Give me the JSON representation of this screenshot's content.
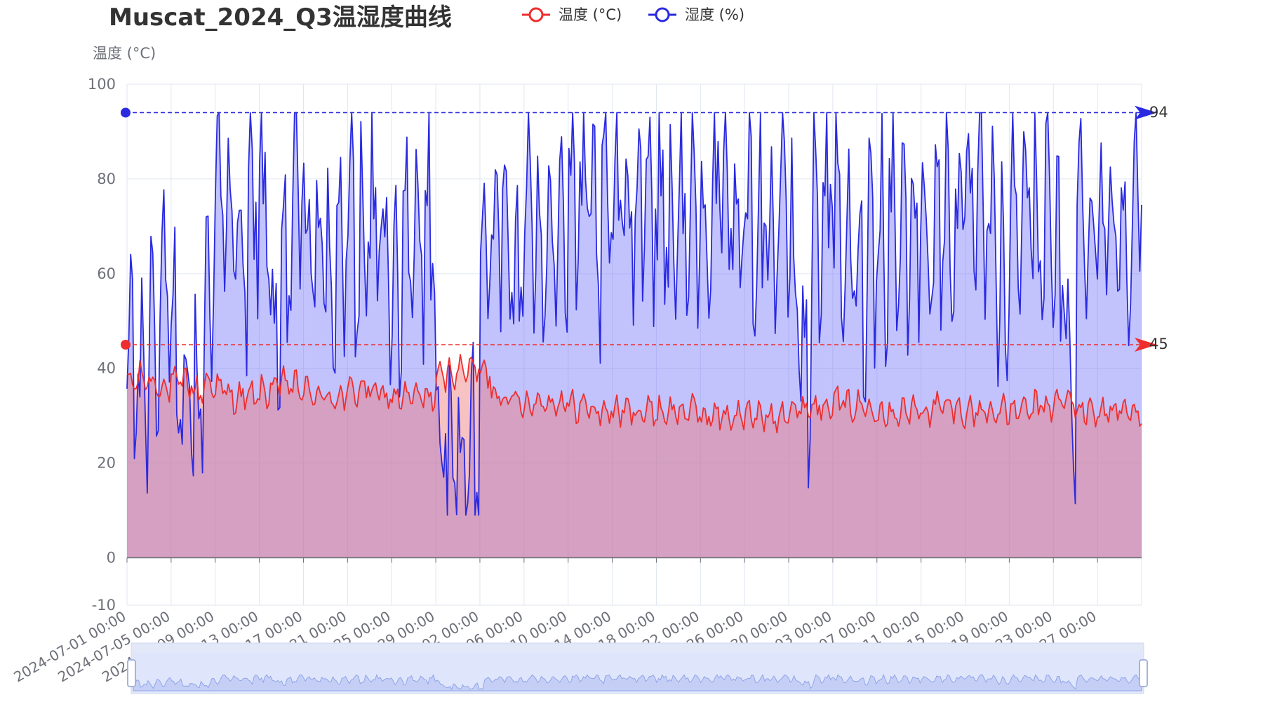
{
  "chart_data": {
    "type": "line",
    "title": "Muscat_2024_Q3温湿度曲线",
    "ylabel": "温度 (°C)",
    "xlabel": "",
    "ylim": [
      -10,
      100
    ],
    "yticks": [
      -10,
      0,
      20,
      40,
      60,
      80,
      100
    ],
    "grid": true,
    "legend": "top",
    "x_range": [
      "2024-07-01 00:00",
      "2024-09-30 23:00"
    ],
    "x_ticks": [
      "2024-07-01 00:00",
      "2024-07-05 00:00",
      "2024-07-09 00:00",
      "2024-07-13 00:00",
      "2024-07-17 00:00",
      "2024-07-21 00:00",
      "2024-07-25 00:00",
      "2024-07-29 00:00",
      "2024-08-02 00:00",
      "2024-08-06 00:00",
      "2024-08-10 00:00",
      "2024-08-14 00:00",
      "2024-08-18 00:00",
      "2024-08-22 00:00",
      "2024-08-26 00:00",
      "2024-08-30 00:00",
      "2024-09-03 00:00",
      "2024-09-07 00:00",
      "2024-09-11 00:00",
      "2024-09-15 00:00",
      "2024-09-19 00:00",
      "2024-09-23 00:00",
      "2024-09-27 00:00"
    ],
    "series": [
      {
        "name": "温度 (°C)",
        "color": "#ee2e2e",
        "fill": "rgba(238,120,120,0.45)",
        "daily_mean": [
          37,
          38,
          37,
          36,
          37,
          37,
          35,
          37,
          36,
          34,
          34,
          34,
          35,
          36,
          37,
          36,
          35,
          34,
          34,
          34,
          35,
          36,
          35,
          34,
          34,
          34,
          34,
          34,
          38,
          39,
          40,
          40,
          39,
          35,
          34,
          33,
          33,
          33,
          33,
          33,
          32,
          32,
          31,
          31,
          31,
          31,
          31,
          31,
          31,
          31,
          31,
          31,
          30,
          30,
          30,
          30,
          30,
          30,
          30,
          31,
          31,
          32,
          32,
          33,
          33,
          32,
          32,
          32,
          31,
          31,
          31,
          31,
          31,
          32,
          32,
          31,
          31,
          31,
          31,
          31,
          31,
          31,
          32,
          32,
          33,
          33,
          31,
          31,
          31,
          31,
          31,
          31
        ],
        "markLine_max": 45
      },
      {
        "name": "湿度 (%)",
        "color": "#2a2ae0",
        "fill": "rgba(120,120,250,0.45)",
        "daily_mean": [
          45,
          30,
          40,
          55,
          45,
          38,
          30,
          58,
          72,
          65,
          55,
          75,
          70,
          45,
          60,
          75,
          70,
          65,
          55,
          65,
          72,
          65,
          70,
          65,
          60,
          62,
          66,
          68,
          25,
          15,
          18,
          22,
          70,
          68,
          66,
          60,
          70,
          72,
          73,
          70,
          72,
          74,
          68,
          72,
          74,
          75,
          80,
          78,
          75,
          72,
          70,
          72,
          75,
          74,
          70,
          72,
          73,
          72,
          70,
          74,
          60,
          40,
          72,
          78,
          70,
          60,
          62,
          68,
          70,
          72,
          68,
          70,
          72,
          70,
          74,
          70,
          72,
          70,
          65,
          55,
          72,
          78,
          72,
          70,
          58,
          40,
          70,
          74,
          72,
          70,
          74,
          76
        ],
        "markLine_max": 94
      }
    ]
  },
  "legend": {
    "temp_label": "温度 (°C)",
    "hum_label": "湿度 (%)"
  },
  "mark_labels": {
    "temp_max": "45",
    "hum_max": "94"
  }
}
